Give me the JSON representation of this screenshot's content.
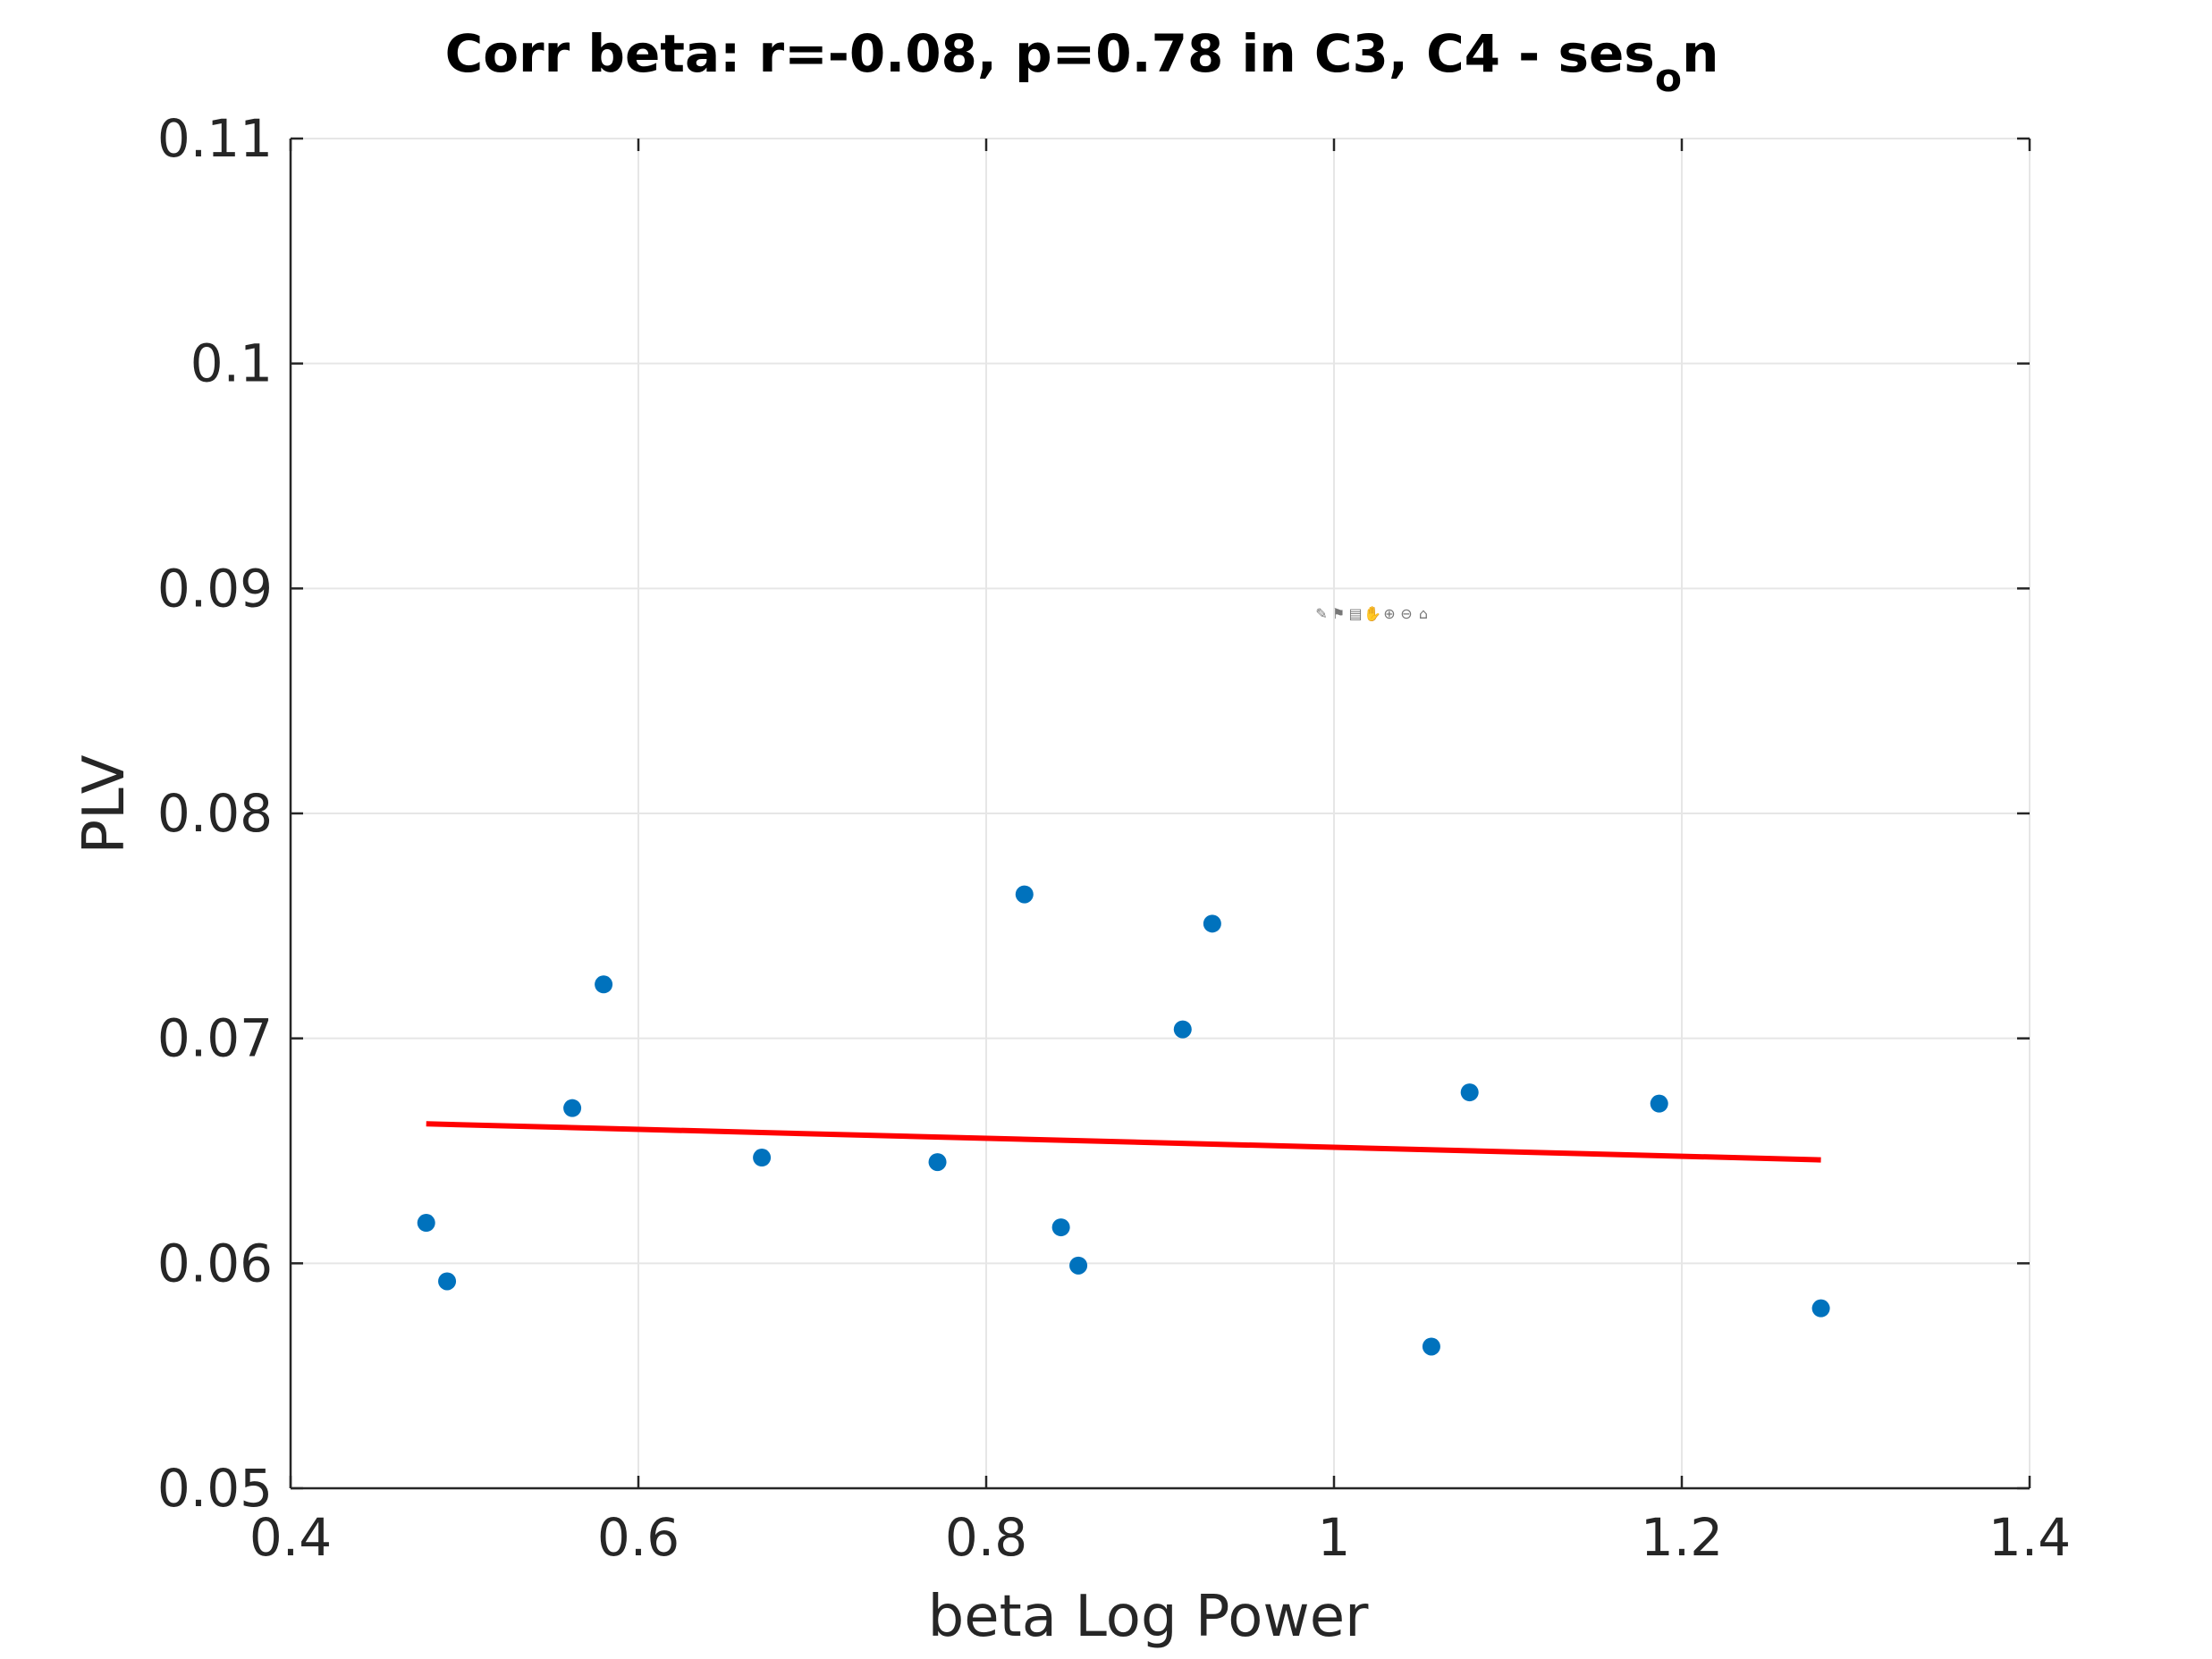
{
  "chart_data": {
    "type": "scatter",
    "title": "Corr beta: r=-0.08, p=0.78 in C3, C4 - ses",
    "title_subscript": "o",
    "title_suffix": "n",
    "xlabel": "beta Log Power",
    "ylabel": "PLV",
    "xlim": [
      0.4,
      1.4
    ],
    "ylim": [
      0.05,
      0.11
    ],
    "xticks": [
      0.4,
      0.6,
      0.8,
      1,
      1.2,
      1.4
    ],
    "xtick_labels": [
      "0.4",
      "0.6",
      "0.8",
      "1",
      "1.2",
      "1.4"
    ],
    "yticks": [
      0.05,
      0.06,
      0.07,
      0.08,
      0.09,
      0.1,
      0.11
    ],
    "ytick_labels": [
      "0.05",
      "0.06",
      "0.07",
      "0.08",
      "0.09",
      "0.1",
      "0.11"
    ],
    "grid": true,
    "series": [
      {
        "kind": "points",
        "color": "#0072BD",
        "x": [
          0.478,
          0.49,
          0.562,
          0.58,
          0.671,
          0.772,
          0.822,
          0.843,
          0.853,
          0.913,
          0.93,
          1.056,
          1.078,
          1.187,
          1.28
        ],
        "y": [
          0.0618,
          0.0592,
          0.0669,
          0.0724,
          0.0647,
          0.0645,
          0.0764,
          0.0616,
          0.0599,
          0.0704,
          0.0751,
          0.0563,
          0.0676,
          0.0671,
          0.058
        ]
      },
      {
        "kind": "fit-line",
        "color": "#FF0000",
        "x": [
          0.478,
          1.28
        ],
        "y": [
          0.0662,
          0.0646
        ]
      }
    ]
  },
  "toolbar": {
    "icons": [
      "brush-icon",
      "datatip-icon",
      "export-icon",
      "pan-icon",
      "zoom-in-icon",
      "zoom-out-icon",
      "home-icon"
    ]
  }
}
